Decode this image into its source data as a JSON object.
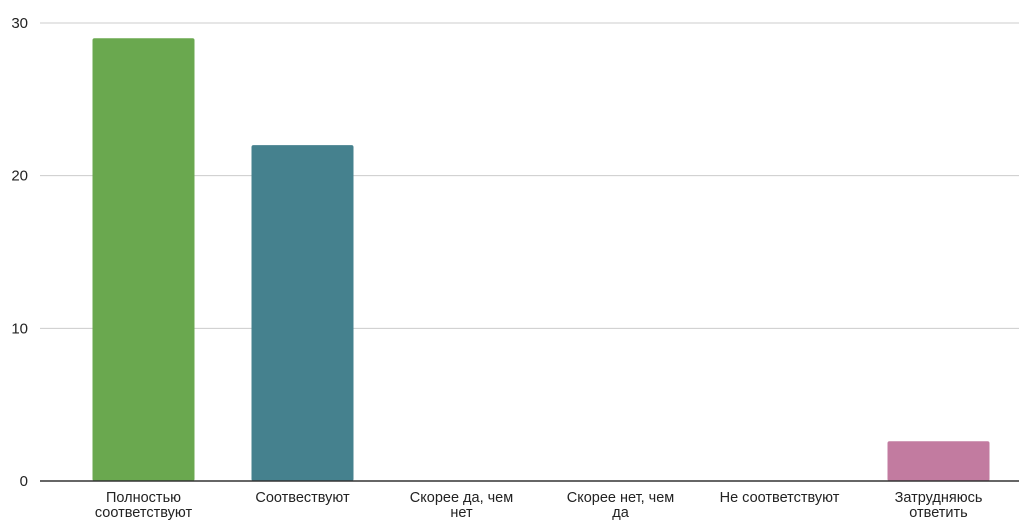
{
  "chart_data": {
    "type": "bar",
    "title": "",
    "xlabel": "",
    "ylabel": "",
    "ylim": [
      0,
      30
    ],
    "yticks": [
      0,
      10,
      20,
      30
    ],
    "grid": true,
    "legend": "none",
    "categories": [
      [
        "Полностью",
        "соответствуют"
      ],
      [
        "Соотвествуют"
      ],
      [
        "Скорее да, чем",
        "нет"
      ],
      [
        "Скорее нет, чем",
        "да"
      ],
      [
        "Не соответствуют"
      ],
      [
        "Затрудняюсь",
        "ответить"
      ]
    ],
    "values": [
      29,
      22,
      0,
      0,
      0,
      2.6
    ],
    "colors": [
      "#6aa84f",
      "#45818e",
      "#6aa84f",
      "#6aa84f",
      "#6aa84f",
      "#c27ba0"
    ]
  }
}
